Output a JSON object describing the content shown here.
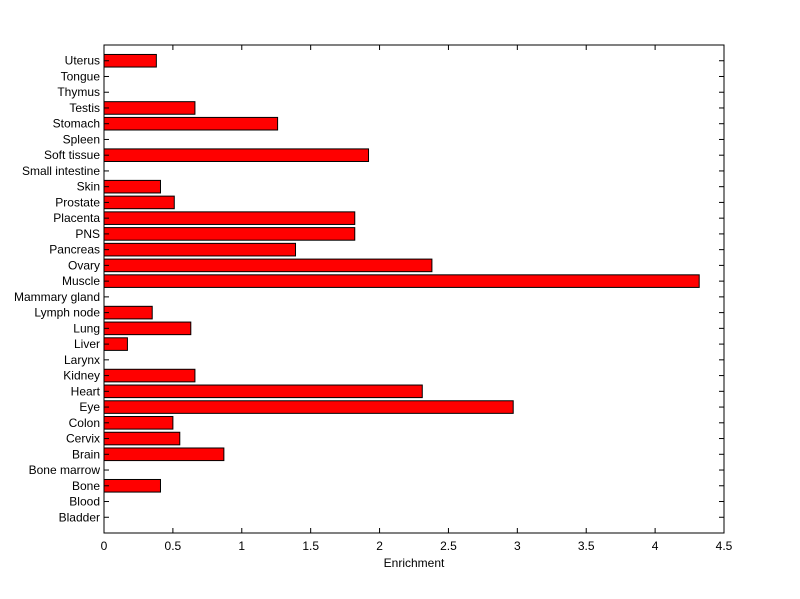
{
  "chart_data": {
    "type": "bar",
    "orientation": "horizontal",
    "title": "",
    "xlabel": "Enrichment",
    "ylabel": "",
    "xlim": [
      0,
      4.5
    ],
    "xticks": [
      "0",
      "0.5",
      "1",
      "1.5",
      "2",
      "2.5",
      "3",
      "3.5",
      "4",
      "4.5"
    ],
    "grid": false,
    "bar_color": "#ff0000",
    "bar_edge_color": "#000000",
    "categories": [
      "Bladder",
      "Blood",
      "Bone",
      "Bone marrow",
      "Brain",
      "Cervix",
      "Colon",
      "Eye",
      "Heart",
      "Kidney",
      "Larynx",
      "Liver",
      "Lung",
      "Lymph node",
      "Mammary gland",
      "Muscle",
      "Ovary",
      "Pancreas",
      "PNS",
      "Placenta",
      "Prostate",
      "Skin",
      "Small intestine",
      "Soft tissue",
      "Spleen",
      "Stomach",
      "Testis",
      "Thymus",
      "Tongue",
      "Uterus"
    ],
    "values": [
      0,
      0,
      0.41,
      0,
      0.87,
      0.55,
      0.5,
      2.97,
      2.31,
      0.66,
      0,
      0.17,
      0.63,
      0.35,
      0,
      4.32,
      2.38,
      1.39,
      1.82,
      1.82,
      0.51,
      0.41,
      0,
      1.92,
      0,
      1.26,
      0.66,
      0,
      0,
      0.38
    ]
  }
}
